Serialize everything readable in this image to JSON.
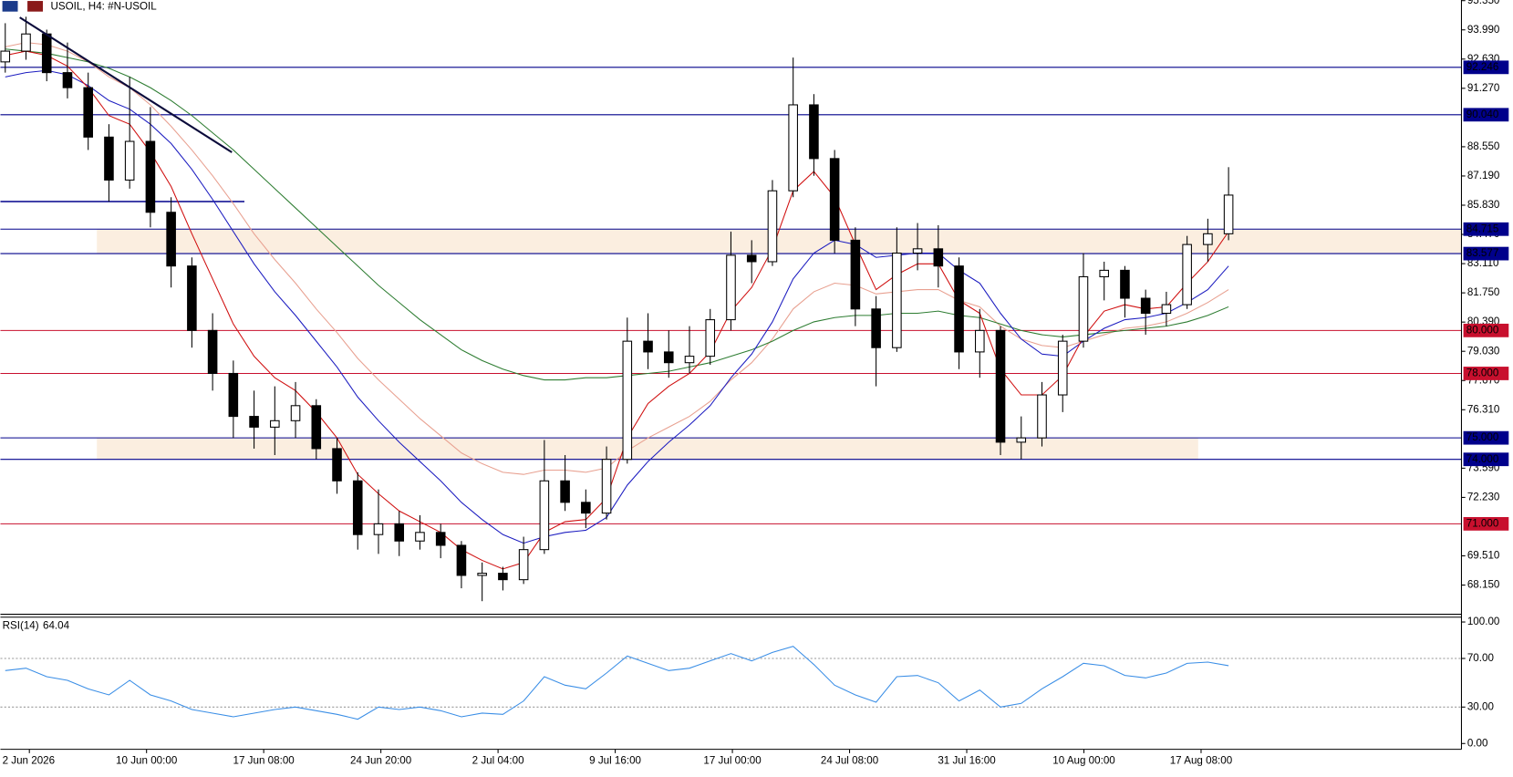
{
  "chart_data": {
    "type": "candlestick",
    "title": "USOIL, H4:  #N-USOIL",
    "candles": [
      [
        92.5,
        94.3,
        92.0,
        93.0
      ],
      [
        93.0,
        94.6,
        92.6,
        93.8
      ],
      [
        93.8,
        94.0,
        91.6,
        92.0
      ],
      [
        92.0,
        93.4,
        90.8,
        91.3
      ],
      [
        91.3,
        92.0,
        88.4,
        89.0
      ],
      [
        89.0,
        89.6,
        86.0,
        87.0
      ],
      [
        87.0,
        91.8,
        86.6,
        88.8
      ],
      [
        88.8,
        90.4,
        84.8,
        85.5
      ],
      [
        85.5,
        86.2,
        82.0,
        83.0
      ],
      [
        83.0,
        83.4,
        79.2,
        80.0
      ],
      [
        80.0,
        80.8,
        77.2,
        78.0
      ],
      [
        78.0,
        78.6,
        75.0,
        76.0
      ],
      [
        76.0,
        77.2,
        74.5,
        75.5
      ],
      [
        75.5,
        77.4,
        74.2,
        75.8
      ],
      [
        75.8,
        77.6,
        75.0,
        76.5
      ],
      [
        76.5,
        76.8,
        74.0,
        74.5
      ],
      [
        74.5,
        75.0,
        72.4,
        73.0
      ],
      [
        73.0,
        73.4,
        69.8,
        70.5
      ],
      [
        70.5,
        72.6,
        69.6,
        71.0
      ],
      [
        71.0,
        71.6,
        69.5,
        70.2
      ],
      [
        70.2,
        71.4,
        69.8,
        70.6
      ],
      [
        70.6,
        71.0,
        69.4,
        70.0
      ],
      [
        70.0,
        70.2,
        68.0,
        68.6
      ],
      [
        68.6,
        69.2,
        67.4,
        68.7
      ],
      [
        68.7,
        69.0,
        67.9,
        68.4
      ],
      [
        68.4,
        70.4,
        68.2,
        69.8
      ],
      [
        69.8,
        74.9,
        69.6,
        73.0
      ],
      [
        73.0,
        74.2,
        71.6,
        72.0
      ],
      [
        72.0,
        72.6,
        70.8,
        71.5
      ],
      [
        71.5,
        74.6,
        71.2,
        74.0
      ],
      [
        74.0,
        80.6,
        73.8,
        79.5
      ],
      [
        79.5,
        80.8,
        78.2,
        79.0
      ],
      [
        79.0,
        80.0,
        77.8,
        78.5
      ],
      [
        78.5,
        80.2,
        78.0,
        78.8
      ],
      [
        78.8,
        81.0,
        78.4,
        80.5
      ],
      [
        80.5,
        84.6,
        80.0,
        83.5
      ],
      [
        83.5,
        84.2,
        82.2,
        83.2
      ],
      [
        83.2,
        87.0,
        83.0,
        86.5
      ],
      [
        86.5,
        92.7,
        86.2,
        90.5
      ],
      [
        90.5,
        91.0,
        87.2,
        88.0
      ],
      [
        88.0,
        88.4,
        83.6,
        84.2
      ],
      [
        84.2,
        84.8,
        80.2,
        81.0
      ],
      [
        81.0,
        81.6,
        77.4,
        79.2
      ],
      [
        79.2,
        84.8,
        79.0,
        83.6
      ],
      [
        83.6,
        85.0,
        82.8,
        83.8
      ],
      [
        83.8,
        84.9,
        82.0,
        83.0
      ],
      [
        83.0,
        83.4,
        78.2,
        79.0
      ],
      [
        79.0,
        81.0,
        77.8,
        80.0
      ],
      [
        80.0,
        80.2,
        74.2,
        74.8
      ],
      [
        74.8,
        76.0,
        74.0,
        75.0
      ],
      [
        75.0,
        77.6,
        74.6,
        77.0
      ],
      [
        77.0,
        79.8,
        76.2,
        79.5
      ],
      [
        79.5,
        83.6,
        79.2,
        82.5
      ],
      [
        82.5,
        83.2,
        81.4,
        82.8
      ],
      [
        82.8,
        83.0,
        80.6,
        81.5
      ],
      [
        81.5,
        81.9,
        79.8,
        80.8
      ],
      [
        80.8,
        81.8,
        80.2,
        81.2
      ],
      [
        81.2,
        84.4,
        81.0,
        84.0
      ],
      [
        84.0,
        85.2,
        83.2,
        84.5
      ],
      [
        84.5,
        87.6,
        84.2,
        86.3
      ]
    ],
    "moving_averages": [
      {
        "color": "#e8a090",
        "values": [
          93.2,
          93.4,
          93.3,
          93.0,
          92.5,
          91.8,
          91.3,
          90.5,
          89.5,
          88.4,
          87.2,
          85.9,
          84.5,
          83.3,
          82.2,
          81.0,
          79.9,
          78.7,
          77.7,
          76.8,
          75.9,
          75.1,
          74.3,
          73.8,
          73.4,
          73.3,
          73.5,
          73.5,
          73.4,
          73.6,
          74.4,
          75.0,
          75.5,
          76.0,
          76.7,
          77.7,
          78.5,
          79.6,
          81.0,
          81.8,
          82.2,
          82.1,
          81.7,
          81.8,
          81.9,
          81.9,
          81.4,
          81.1,
          80.2,
          79.6,
          79.3,
          79.2,
          79.5,
          79.8,
          80.1,
          80.2,
          80.4,
          80.8,
          81.3,
          81.9
        ]
      },
      {
        "color": "#2e7d32",
        "values": [
          93.1,
          93.0,
          92.9,
          92.7,
          92.5,
          92.2,
          91.8,
          91.3,
          90.7,
          90.0,
          89.2,
          88.4,
          87.5,
          86.6,
          85.7,
          84.8,
          83.9,
          83.0,
          82.1,
          81.3,
          80.5,
          79.8,
          79.1,
          78.6,
          78.2,
          77.9,
          77.7,
          77.7,
          77.8,
          77.8,
          77.9,
          78.0,
          78.1,
          78.3,
          78.5,
          78.8,
          79.1,
          79.5,
          80.0,
          80.4,
          80.6,
          80.7,
          80.7,
          80.8,
          80.8,
          80.9,
          80.7,
          80.6,
          80.3,
          80.0,
          79.8,
          79.7,
          79.8,
          79.9,
          80.0,
          80.1,
          80.2,
          80.4,
          80.7,
          81.1
        ]
      },
      {
        "color": "#1c1cc0",
        "values": [
          91.8,
          92.0,
          92.1,
          91.9,
          91.4,
          90.7,
          90.3,
          89.6,
          88.7,
          87.5,
          86.1,
          84.6,
          83.1,
          81.8,
          80.7,
          79.5,
          78.3,
          76.9,
          75.8,
          74.8,
          73.9,
          73.0,
          72.0,
          71.2,
          70.5,
          70.1,
          70.4,
          70.6,
          70.7,
          71.3,
          72.8,
          73.9,
          74.8,
          75.6,
          76.5,
          77.8,
          78.9,
          80.4,
          82.4,
          83.6,
          84.2,
          84.0,
          83.4,
          83.5,
          83.6,
          83.6,
          82.8,
          82.2,
          80.8,
          79.6,
          78.9,
          78.8,
          79.5,
          80.1,
          80.5,
          80.6,
          80.8,
          81.3,
          81.9,
          83.0
        ]
      },
      {
        "color": "#d01010",
        "values": [
          92.8,
          93.0,
          92.8,
          92.3,
          91.3,
          90.0,
          89.6,
          88.3,
          86.7,
          84.5,
          82.4,
          80.3,
          78.8,
          77.8,
          77.2,
          76.2,
          75.0,
          73.3,
          72.4,
          71.6,
          71.1,
          70.6,
          69.8,
          69.3,
          68.9,
          69.2,
          70.6,
          71.1,
          71.2,
          72.2,
          75.0,
          76.6,
          77.4,
          78.0,
          79.0,
          80.9,
          82.0,
          83.8,
          86.5,
          87.4,
          86.2,
          84.0,
          81.9,
          82.6,
          83.1,
          83.1,
          81.4,
          80.8,
          78.2,
          77.0,
          77.0,
          77.9,
          79.7,
          80.9,
          81.2,
          81.0,
          81.1,
          82.2,
          83.2,
          84.6
        ]
      }
    ],
    "zones": [
      {
        "low": 83.577,
        "high": 84.715
      },
      {
        "low": 74,
        "high": 75
      }
    ],
    "levels": [
      {
        "value": 92.246,
        "label": "92.246",
        "color": "#00008b"
      },
      {
        "value": 90.04,
        "label": "90.040",
        "color": "#00008b"
      },
      {
        "value": 84.715,
        "label": "84.715",
        "color": "#00008b"
      },
      {
        "value": 83.577,
        "label": "83.577",
        "color": "#00008b"
      },
      {
        "value": 80,
        "label": "80.000",
        "color": "#c8102e"
      },
      {
        "value": 78,
        "label": "78.000",
        "color": "#c8102e"
      },
      {
        "value": 75,
        "label": "75.000",
        "color": "#00008b"
      },
      {
        "value": 74,
        "label": "74.000",
        "color": "#00008b"
      },
      {
        "value": 71,
        "label": "71.000",
        "color": "#c8102e"
      }
    ],
    "segment_level": {
      "value": 86.0,
      "color": "#00008b"
    },
    "trendline": {
      "from": [
        0.7,
        94.57
      ],
      "to": [
        10.93,
        88.29
      ]
    },
    "ylim": [
      66.79,
      95.38
    ],
    "yticks": [
      {
        "value": 95.35,
        "label": "95.350"
      },
      {
        "value": 93.99,
        "label": "93.990"
      },
      {
        "value": 92.63,
        "label": "92.630"
      },
      {
        "value": 91.27,
        "label": "91.270"
      },
      {
        "value": 88.55,
        "label": "88.550"
      },
      {
        "value": 87.19,
        "label": "87.190"
      },
      {
        "value": 85.83,
        "label": "85.830"
      },
      {
        "value": 84.47,
        "label": "84.470"
      },
      {
        "value": 83.11,
        "label": "83.110"
      },
      {
        "value": 81.75,
        "label": "81.750"
      },
      {
        "value": 80.39,
        "label": "80.390"
      },
      {
        "value": 79.03,
        "label": "79.030"
      },
      {
        "value": 77.67,
        "label": "77.670"
      },
      {
        "value": 76.31,
        "label": "76.310"
      },
      {
        "value": 73.59,
        "label": "73.590"
      },
      {
        "value": 72.23,
        "label": "72.230"
      },
      {
        "value": 69.51,
        "label": "69.510"
      },
      {
        "value": 68.15,
        "label": "68.150"
      }
    ],
    "x_labels": [
      "2 Jun 2026",
      "10 Jun 00:00",
      "17 Jun 08:00",
      "24 Jun 20:00",
      "2 Jul 04:00",
      "9 Jul 16:00",
      "17 Jul 00:00",
      "24 Jul 08:00",
      "31 Jul 16:00",
      "10 Aug 00:00",
      "17 Aug 08:00"
    ],
    "rsi": {
      "name": "RSI(14)",
      "color": "#3a8ee6",
      "values": [
        60,
        62,
        55,
        52,
        45,
        40,
        52,
        40,
        35,
        28,
        25,
        22,
        25,
        28,
        30,
        27,
        24,
        20,
        30,
        28,
        30,
        27,
        22,
        25,
        24,
        35,
        55,
        48,
        45,
        58,
        72,
        66,
        60,
        62,
        68,
        74,
        68,
        75,
        80,
        65,
        48,
        40,
        34,
        55,
        56,
        50,
        35,
        44,
        30,
        33,
        45,
        55,
        66,
        64,
        56,
        54,
        58,
        66,
        67,
        64.04
      ],
      "ylim": [
        0,
        100
      ],
      "yticks": [
        {
          "value": 100,
          "label": "100.00"
        },
        {
          "value": 70,
          "label": "70.00"
        },
        {
          "value": 30,
          "label": "30.00"
        },
        {
          "value": 0,
          "label": "0.00"
        }
      ],
      "levels": [
        70,
        30
      ]
    }
  }
}
